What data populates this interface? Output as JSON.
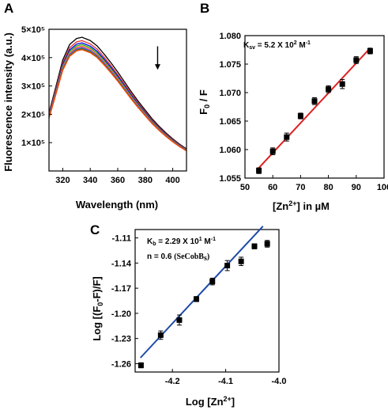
{
  "chart_data": [
    {
      "id": "A",
      "type": "line",
      "panel_label": "A",
      "xlabel": "Wavelength (nm)",
      "ylabel": "Fluorescence intensity (a.u.)",
      "xlim": [
        310,
        410
      ],
      "ylim": [
        0,
        500000
      ],
      "x_ticks": [
        320,
        340,
        360,
        380,
        400
      ],
      "y_ticks": [
        {
          "value": 100000,
          "label": "1×10⁵"
        },
        {
          "value": 200000,
          "label": "2×10⁵"
        },
        {
          "value": 300000,
          "label": "3×10⁵"
        },
        {
          "value": 400000,
          "label": "4×10⁵"
        },
        {
          "value": 500000,
          "label": "5×10⁵"
        }
      ],
      "peak_x": 334,
      "x": [
        310,
        315,
        320,
        325,
        330,
        334,
        340,
        345,
        350,
        355,
        360,
        365,
        370,
        375,
        380,
        385,
        390,
        395,
        400,
        405,
        410
      ],
      "shape": [
        0.434,
        0.63,
        0.83,
        0.945,
        0.99,
        1.0,
        0.975,
        0.935,
        0.875,
        0.81,
        0.74,
        0.665,
        0.59,
        0.52,
        0.455,
        0.39,
        0.335,
        0.285,
        0.24,
        0.2,
        0.165
      ],
      "series": [
        {
          "peak": 472000,
          "color": "#000000"
        },
        {
          "peak": 460000,
          "color": "#e8332b"
        },
        {
          "peak": 452000,
          "color": "#0000ee"
        },
        {
          "peak": 446000,
          "color": "#22aa22"
        },
        {
          "peak": 441000,
          "color": "#f08a24"
        },
        {
          "peak": 437000,
          "color": "#cc33cc"
        },
        {
          "peak": 434000,
          "color": "#1a7fd6"
        },
        {
          "peak": 431000,
          "color": "#6b6b00"
        },
        {
          "peak": 428000,
          "color": "#ff4500"
        }
      ],
      "arrow": {
        "x": 389,
        "y_start": 440000,
        "y_end": 360000,
        "direction": "down"
      },
      "grid": false
    },
    {
      "id": "B",
      "type": "scatter",
      "panel_label": "B",
      "xlabel": "[Zn²⁺] in µM",
      "ylabel": "F₀ / F",
      "xlim": [
        50,
        100
      ],
      "ylim": [
        1.055,
        1.08
      ],
      "x_ticks": [
        50,
        60,
        70,
        80,
        90,
        100
      ],
      "y_ticks": [
        1.055,
        1.06,
        1.065,
        1.07,
        1.075,
        1.08
      ],
      "points": [
        {
          "x": 55,
          "y": 1.0563,
          "err": 0.0005
        },
        {
          "x": 60,
          "y": 1.0597,
          "err": 0.0006
        },
        {
          "x": 65,
          "y": 1.0622,
          "err": 0.0007
        },
        {
          "x": 70,
          "y": 1.0659,
          "err": 0.0005
        },
        {
          "x": 75,
          "y": 1.0685,
          "err": 0.0006
        },
        {
          "x": 80,
          "y": 1.0706,
          "err": 0.0006
        },
        {
          "x": 85,
          "y": 1.0715,
          "err": 0.0008
        },
        {
          "x": 90,
          "y": 1.0757,
          "err": 0.0006
        },
        {
          "x": 95,
          "y": 1.0773,
          "err": 0.0005
        }
      ],
      "fit": {
        "x": [
          55,
          95
        ],
        "y": [
          1.0568,
          1.0778
        ],
        "color": "#dd2222"
      },
      "annotation": "K_SV = 5.2 X 10² M⁻¹",
      "annotation_parts": {
        "sub": "sv",
        "main": " = 5.2 X 10",
        "exp": "2",
        "unit": " M",
        "unit_exp": "-1"
      },
      "grid": false
    },
    {
      "id": "C",
      "type": "scatter",
      "panel_label": "C",
      "xlabel": "Log [Zn²⁺]",
      "ylabel": "Log [(F₀-F)/F]",
      "xlim": [
        -4.27,
        -4.0
      ],
      "ylim": [
        -1.27,
        -1.1
      ],
      "x_ticks": [
        {
          "value": -4.2,
          "label": "-4.2"
        },
        {
          "value": -4.1,
          "label": "-4.1"
        },
        {
          "value": -4.0,
          "label": "-4.0"
        }
      ],
      "y_ticks": [
        -1.26,
        -1.23,
        -1.2,
        -1.17,
        -1.14,
        -1.11
      ],
      "points": [
        {
          "x": -4.259,
          "y": -1.262,
          "err": 0.003
        },
        {
          "x": -4.222,
          "y": -1.226,
          "err": 0.005
        },
        {
          "x": -4.187,
          "y": -1.208,
          "err": 0.006
        },
        {
          "x": -4.155,
          "y": -1.183,
          "err": 0.003
        },
        {
          "x": -4.125,
          "y": -1.162,
          "err": 0.004
        },
        {
          "x": -4.097,
          "y": -1.143,
          "err": 0.006
        },
        {
          "x": -4.071,
          "y": -1.138,
          "err": 0.005
        },
        {
          "x": -4.046,
          "y": -1.12,
          "err": 0.003
        },
        {
          "x": -4.022,
          "y": -1.117,
          "err": 0.004
        }
      ],
      "fit": {
        "x": [
          -4.26,
          -4.03
        ],
        "y": [
          -1.253,
          -1.096
        ],
        "color": "#1f4aa8"
      },
      "annotations": [
        {
          "id": "kb",
          "text": "K_b = 2.29 X 10¹ M⁻¹",
          "parts": {
            "main": "K",
            "sub": "b",
            "rest": " = 2.29 X 10",
            "exp": "1",
            "unit": " M",
            "unit_exp": "-1"
          }
        },
        {
          "id": "n",
          "text": "n = 0.6",
          "extra": "(SeCobB",
          "extra_sub": "s",
          "extra_end": ")"
        }
      ],
      "grid": false
    }
  ]
}
